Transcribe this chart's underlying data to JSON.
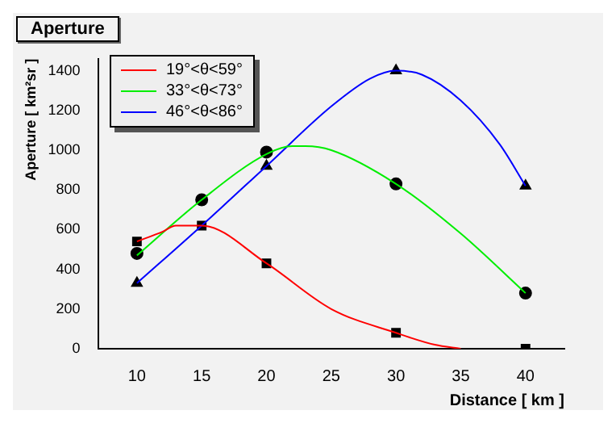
{
  "chart_data": {
    "type": "line",
    "title": "Aperture",
    "xlabel": "Distance [ km ]",
    "ylabel": "Aperture [ km²sr ]",
    "xlim": [
      7,
      43
    ],
    "xticks": [
      10,
      15,
      20,
      25,
      30,
      35,
      40
    ],
    "ylim": [
      0,
      1460
    ],
    "yticks": [
      0,
      200,
      400,
      600,
      800,
      1000,
      1200,
      1400
    ],
    "grid": false,
    "legend": "top left",
    "marker": "none",
    "series": [
      {
        "name": "19°<θ<59°",
        "color": "#ff0000",
        "x": [
          10,
          12,
          13,
          15,
          20,
          25,
          30,
          33,
          35
        ],
        "values": [
          540,
          590,
          620,
          620,
          430,
          200,
          80,
          20,
          0
        ]
      },
      {
        "name": "33°<θ<73°",
        "color": "#00ee00",
        "x": [
          10,
          15,
          20,
          22,
          23,
          25,
          30,
          35,
          40
        ],
        "values": [
          470,
          750,
          980,
          1020,
          1020,
          1000,
          830,
          580,
          280
        ]
      },
      {
        "name": "46°<θ<86°",
        "color": "#0000ff",
        "x": [
          10,
          15,
          20,
          25,
          28,
          30,
          32,
          35,
          38,
          40
        ],
        "values": [
          330,
          620,
          920,
          1220,
          1360,
          1400,
          1380,
          1250,
          1030,
          820
        ]
      },
      {
        "type": "scatter",
        "marker": "square",
        "color": "#000000",
        "x": [
          10,
          15,
          20,
          30,
          40
        ],
        "values": [
          540,
          620,
          430,
          80,
          0
        ]
      },
      {
        "type": "scatter",
        "marker": "circle",
        "color": "#000000",
        "x": [
          10,
          15,
          20,
          30,
          40
        ],
        "values": [
          480,
          750,
          990,
          830,
          280
        ]
      },
      {
        "type": "scatter",
        "marker": "triangle",
        "color": "#000000",
        "x": [
          10,
          15,
          20,
          30,
          40
        ],
        "values": [
          330,
          null,
          920,
          1400,
          820
        ]
      }
    ]
  }
}
